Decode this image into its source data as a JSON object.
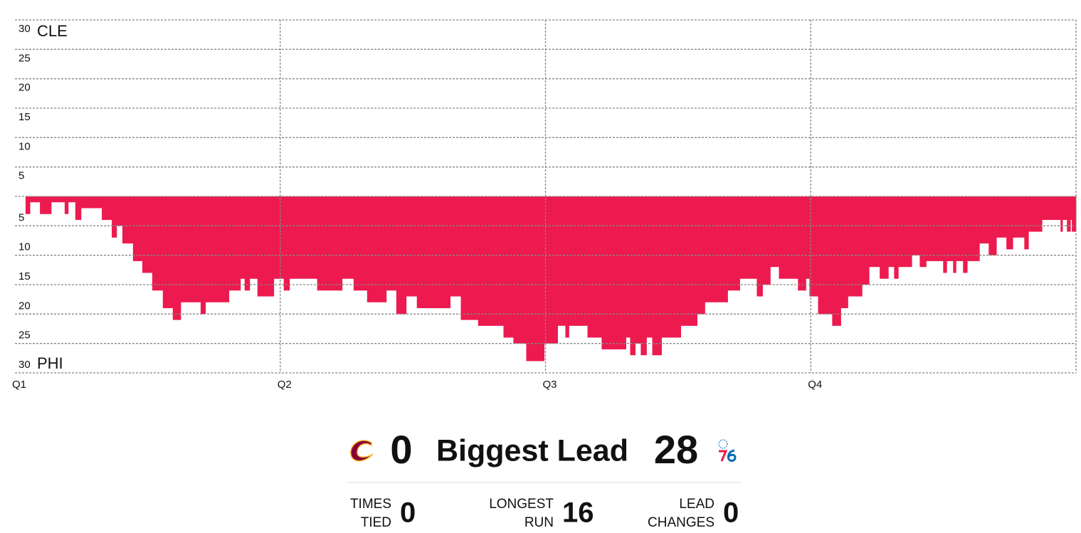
{
  "chart_data": {
    "type": "step-area",
    "top_team": "CLE",
    "bottom_team": "PHI",
    "xlim": [
      0,
      48
    ],
    "xticks": [
      {
        "value": 0,
        "label": "Q1"
      },
      {
        "value": 12,
        "label": "Q2"
      },
      {
        "value": 24,
        "label": "Q3"
      },
      {
        "value": 36,
        "label": "Q4"
      }
    ],
    "ylim": [
      -30,
      30
    ],
    "yticks": [
      {
        "value": 30,
        "label": "30"
      },
      {
        "value": 25,
        "label": "25"
      },
      {
        "value": 20,
        "label": "20"
      },
      {
        "value": 15,
        "label": "15"
      },
      {
        "value": 10,
        "label": "10"
      },
      {
        "value": 5,
        "label": "5"
      },
      {
        "value": 0,
        "label": null
      },
      {
        "value": -5,
        "label": "5"
      },
      {
        "value": -10,
        "label": "10"
      },
      {
        "value": -15,
        "label": "15"
      },
      {
        "value": -20,
        "label": "20"
      },
      {
        "value": -25,
        "label": "25"
      },
      {
        "value": -30,
        "label": "30"
      }
    ],
    "grid": true,
    "series": [
      {
        "name": "PHI lead",
        "color": "#ed1a4f",
        "x": [
          0.48,
          0.68,
          1.13,
          1.64,
          2.25,
          2.41,
          2.73,
          2.99,
          3.93,
          4.38,
          4.6,
          4.86,
          5.34,
          5.76,
          6.21,
          6.69,
          7.14,
          7.5,
          8.4,
          8.62,
          9.68,
          10.2,
          10.39,
          10.62,
          10.97,
          11.71,
          12.16,
          12.42,
          13.67,
          14.8,
          15.32,
          15.93,
          16.8,
          17.25,
          17.7,
          18.18,
          19.69,
          20.17,
          20.95,
          22.1,
          22.55,
          23.13,
          23.94,
          24.55,
          24.9,
          25.06,
          25.9,
          26.54,
          27.64,
          27.83,
          28.06,
          28.31,
          28.57,
          28.83,
          29.25,
          30.12,
          30.86,
          31.21,
          32.24,
          32.79,
          33.56,
          33.82,
          34.17,
          34.56,
          35.42,
          35.78,
          35.94,
          36.33,
          36.97,
          37.36,
          37.68,
          38.32,
          38.64,
          39.12,
          39.51,
          39.77,
          39.96,
          40.57,
          40.93,
          41.22,
          41.99,
          42.15,
          42.44,
          42.57,
          42.89,
          43.08,
          43.63,
          44.05,
          44.4,
          44.85,
          45.14,
          45.66,
          45.85,
          46.46,
          47.3,
          47.39,
          47.59,
          47.75,
          47.81
        ],
        "values": [
          -3,
          -1,
          -3,
          -1,
          -3,
          -1,
          -4,
          -2,
          -4,
          -7,
          -5,
          -8,
          -11,
          -13,
          -16,
          -19,
          -21,
          -18,
          -20,
          -18,
          -16,
          -14,
          -16,
          -14,
          -17,
          -14,
          -16,
          -14,
          -16,
          -14,
          -16,
          -18,
          -16,
          -20,
          -17,
          -19,
          -17,
          -21,
          -22,
          -24,
          -25,
          -28,
          -25,
          -22,
          -24,
          -22,
          -24,
          -26,
          -24,
          -27,
          -25,
          -27,
          -24,
          -27,
          -24,
          -22,
          -20,
          -18,
          -16,
          -14,
          -17,
          -15,
          -12,
          -14,
          -16,
          -14,
          -17,
          -20,
          -22,
          -19,
          -17,
          -15,
          -12,
          -14,
          -12,
          -14,
          -12,
          -10,
          -12,
          -11,
          -13,
          -11,
          -13,
          -11,
          -13,
          -11,
          -8,
          -10,
          -7,
          -9,
          -7,
          -9,
          -6,
          -4,
          -6,
          -4,
          -6,
          -4,
          -6
        ]
      }
    ]
  },
  "summary": {
    "biggest_lead": {
      "label": "Biggest Lead",
      "left": 0,
      "right": 28
    },
    "stats": [
      {
        "label": [
          "TIMES",
          "TIED"
        ],
        "value": 0
      },
      {
        "label": [
          "LONGEST",
          "RUN"
        ],
        "value": 16
      },
      {
        "label": [
          "LEAD",
          "CHANGES"
        ],
        "value": 0
      }
    ]
  }
}
